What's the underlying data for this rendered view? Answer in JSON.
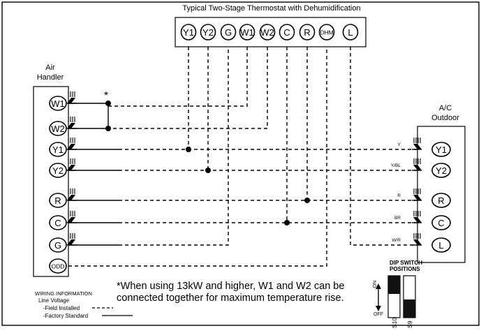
{
  "thermostat": {
    "title": "Typical Two-Stage Thermostat with Dehumidification",
    "terminals": [
      "Y1",
      "Y2",
      "G",
      "W1",
      "W2",
      "C",
      "R",
      "DHM",
      "L"
    ]
  },
  "air_handler": {
    "title_line1": "Air",
    "title_line2": "Handler",
    "terminals": [
      "W1",
      "W2",
      "Y1",
      "Y2",
      "R",
      "C",
      "G",
      "ODD"
    ]
  },
  "outdoor": {
    "title_line1": "A/C",
    "title_line2": "Outdoor",
    "terminals": [
      "Y1",
      "Y2",
      "R",
      "C",
      "L"
    ],
    "lead_labels": [
      "Y",
      "Y/BL",
      "R",
      "BR",
      "W/R"
    ]
  },
  "asterisk": "*",
  "note": {
    "line1": "*When using 13kW and higher, W1 and W2 can be",
    "line2": "connected together for maximum temperature rise."
  },
  "legend": {
    "title": "WIRING INFORMATION",
    "subtitle": "Line Voltage",
    "field": "-Field Installed",
    "factory": "-Factory Standard"
  },
  "dip": {
    "title_line1": "DIP SWITCH",
    "title_line2": "POSITIONS",
    "on": "ON",
    "off": "OFF",
    "switch1": "S10",
    "switch2": "S9"
  }
}
